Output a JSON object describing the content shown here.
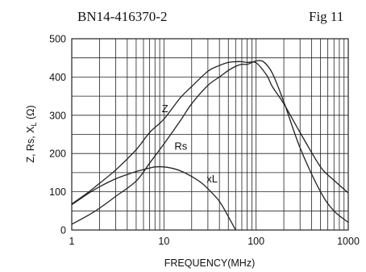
{
  "header": {
    "left": "BN14-416370-2",
    "right": "Fig 11"
  },
  "chart_data": {
    "type": "line",
    "xlabel": "FREQUENCY(MHz)",
    "ylabel": "Z, Rs, X",
    "ylabel_sub": "L",
    "ylabel_unit": " (Ω)",
    "x_scale": "log",
    "xlim": [
      1,
      1000
    ],
    "ylim": [
      0,
      500
    ],
    "grid": true,
    "x_tick_labels": [
      "1",
      "10",
      "100",
      "1000"
    ],
    "x_ticks": [
      1,
      10,
      100,
      1000
    ],
    "y_tick_labels": [
      "0",
      "100",
      "200",
      "300",
      "400",
      "500"
    ],
    "y_ticks": [
      0,
      100,
      200,
      300,
      400,
      500
    ],
    "series": [
      {
        "name": "Z",
        "x": [
          1,
          1.5,
          2,
          3,
          5,
          7,
          10,
          15,
          20,
          30,
          40,
          50,
          60,
          70,
          80,
          100,
          130,
          150,
          200,
          300,
          500,
          700,
          1000
        ],
        "y": [
          68,
          98,
          122,
          157,
          210,
          255,
          290,
          345,
          375,
          415,
          430,
          438,
          440,
          440,
          438,
          437,
          405,
          375,
          330,
          255,
          165,
          130,
          97
        ]
      },
      {
        "name": "Rs",
        "x": [
          1,
          1.5,
          2,
          3,
          5,
          7,
          10,
          15,
          20,
          30,
          40,
          50,
          60,
          70,
          80,
          90,
          100,
          120,
          150,
          200,
          300,
          500,
          700,
          1000
        ],
        "y": [
          15,
          38,
          57,
          88,
          128,
          175,
          225,
          285,
          330,
          378,
          400,
          417,
          428,
          433,
          433,
          438,
          442,
          440,
          410,
          335,
          215,
          100,
          50,
          20
        ]
      },
      {
        "name": "xL",
        "x": [
          1,
          1.5,
          2,
          3,
          4,
          5,
          7,
          8,
          10,
          12,
          15,
          20,
          25,
          30,
          40,
          50,
          60
        ],
        "y": [
          66,
          95,
          113,
          134,
          145,
          153,
          162,
          165,
          165,
          162,
          155,
          140,
          125,
          108,
          75,
          35,
          0
        ]
      }
    ],
    "labels": [
      {
        "text": "Z",
        "x": 9.5,
        "y": 308
      },
      {
        "text": "Rs",
        "x": 13,
        "y": 210
      },
      {
        "text": "xL",
        "x": 29,
        "y": 125
      }
    ]
  }
}
